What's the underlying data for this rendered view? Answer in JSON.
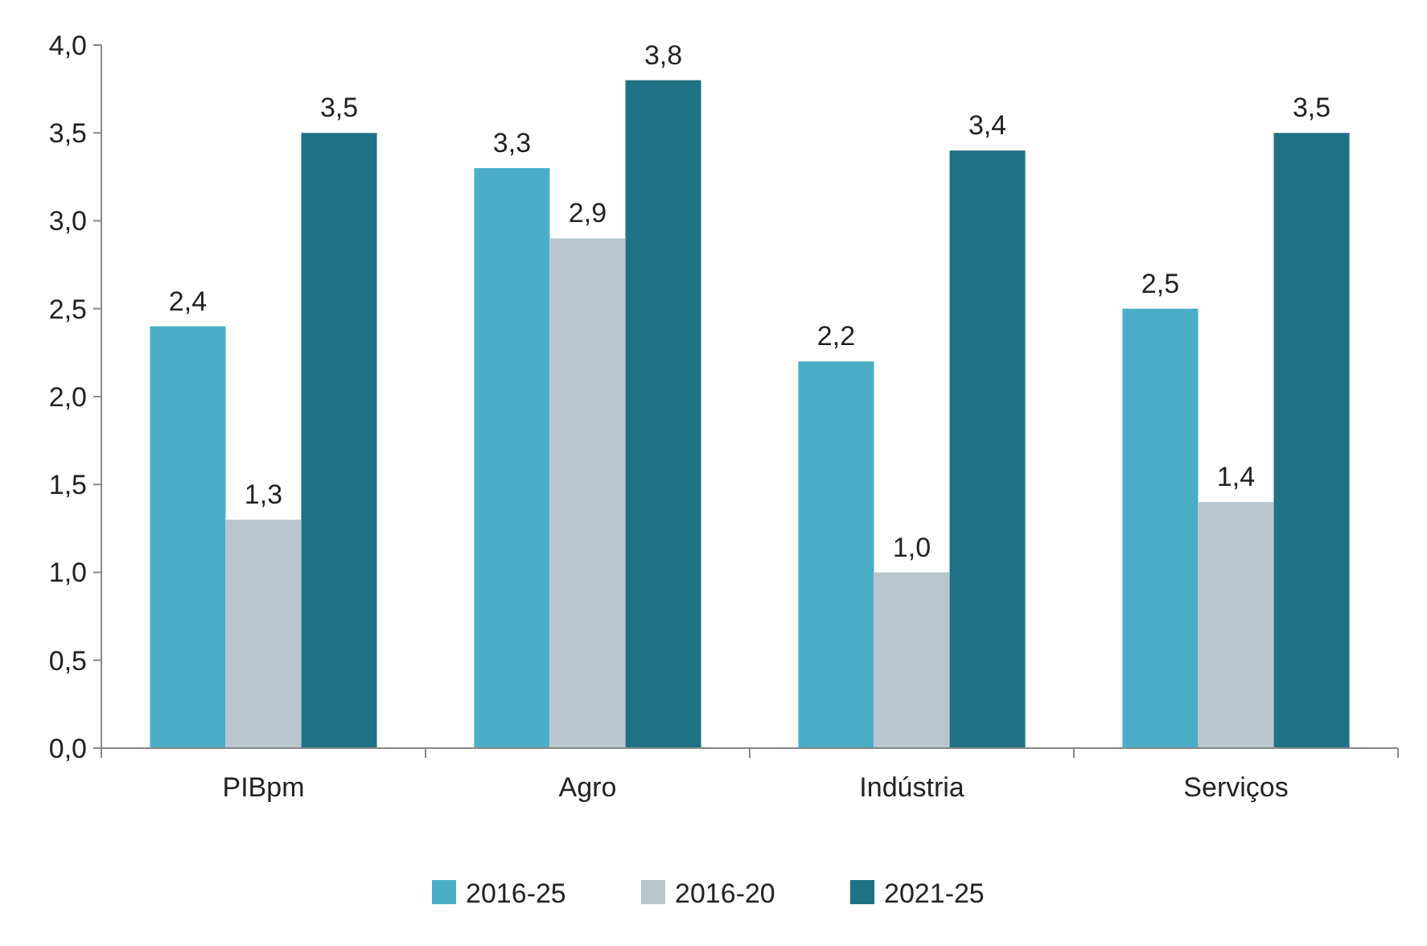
{
  "chart_data": {
    "type": "bar",
    "categories": [
      "PIBpm",
      "Agro",
      "Indústria",
      "Serviços"
    ],
    "series": [
      {
        "name": "2016-25",
        "color": "#4aadc8",
        "values": [
          2.4,
          3.3,
          2.2,
          2.5
        ],
        "value_labels": [
          "2,4",
          "3,3",
          "2,2",
          "2,5"
        ]
      },
      {
        "name": "2016-20",
        "color": "#b9c6ce",
        "values": [
          1.3,
          2.9,
          1.0,
          1.4
        ],
        "value_labels": [
          "1,3",
          "2,9",
          "1,0",
          "1,4"
        ]
      },
      {
        "name": "2021-25",
        "color": "#1f7185",
        "values": [
          3.5,
          3.8,
          3.4,
          3.5
        ],
        "value_labels": [
          "3,5",
          "3,8",
          "3,4",
          "3,5"
        ]
      }
    ],
    "ylim": [
      0,
      4
    ],
    "yticks": [
      {
        "value": 0,
        "label": "0,0"
      },
      {
        "value": 0.5,
        "label": "0,5"
      },
      {
        "value": 1,
        "label": "1,0"
      },
      {
        "value": 1.5,
        "label": "1,5"
      },
      {
        "value": 2,
        "label": "2,0"
      },
      {
        "value": 2.5,
        "label": "2,5"
      },
      {
        "value": 3,
        "label": "3,0"
      },
      {
        "value": 3.5,
        "label": "3,5"
      },
      {
        "value": 4,
        "label": "4,0"
      }
    ],
    "legend": "bottom"
  }
}
